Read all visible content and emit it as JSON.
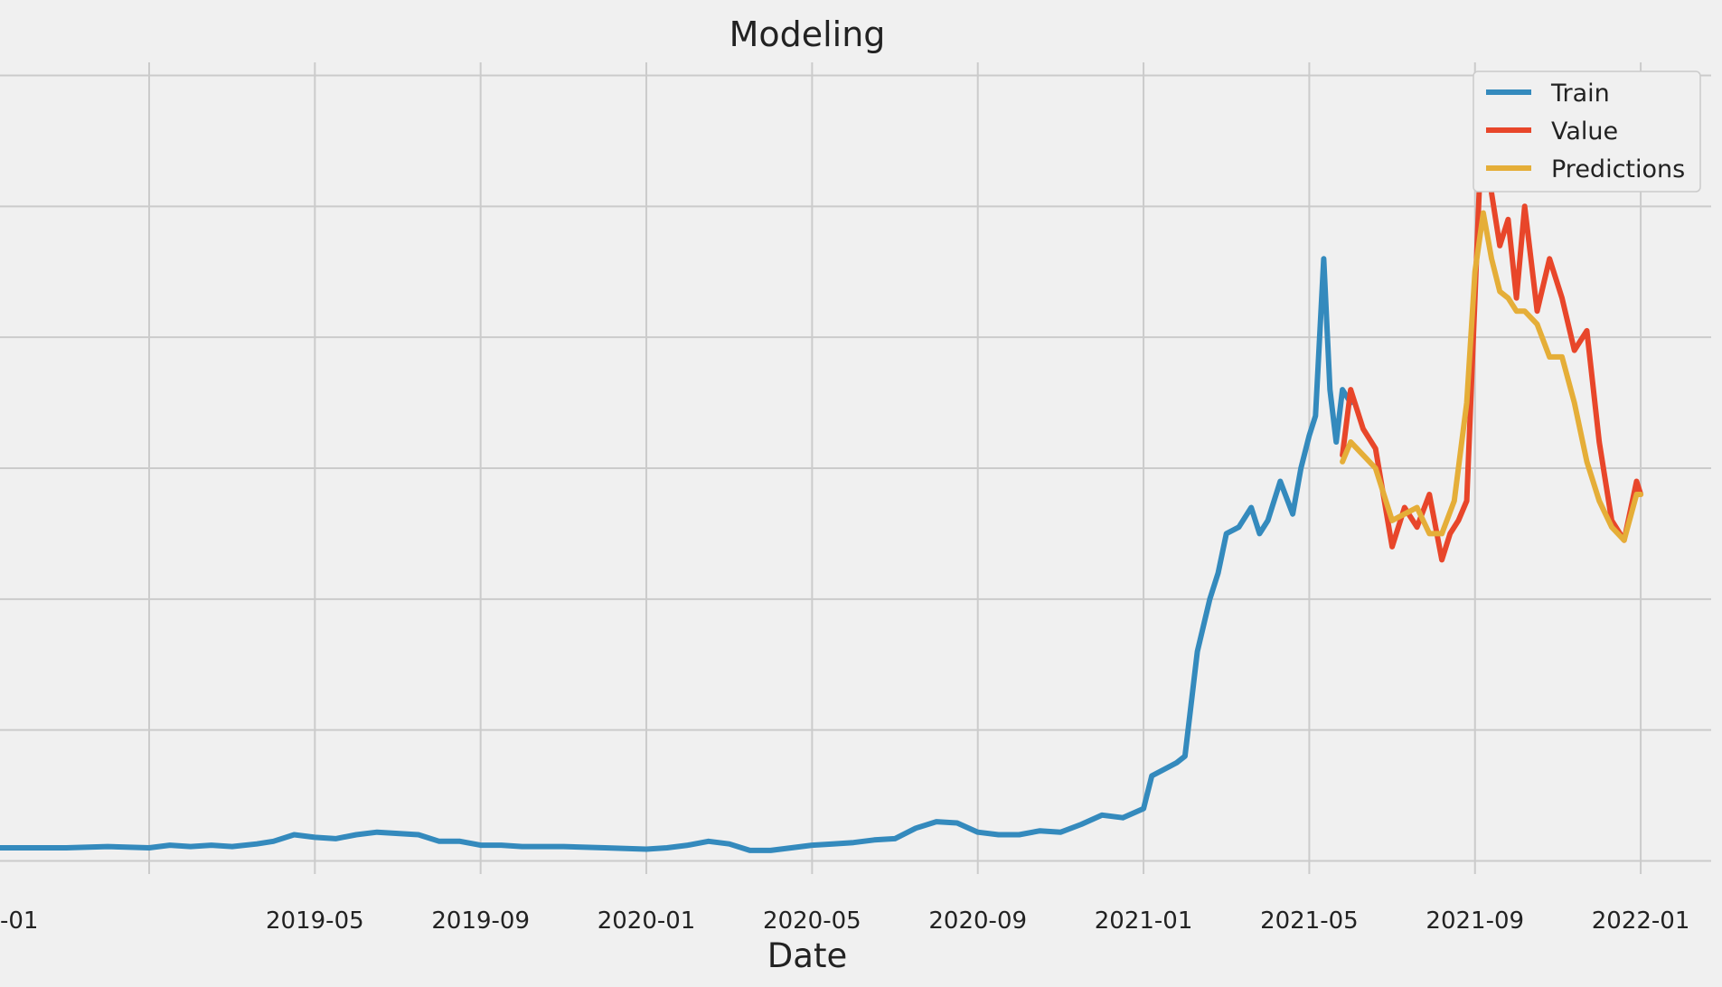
{
  "chart_data": {
    "type": "line",
    "title": "Modeling",
    "xlabel": "Date",
    "ylabel": "",
    "x_tick_labels": [
      "-01",
      "2019-05",
      "2019-09",
      "2020-01",
      "2020-05",
      "2020-09",
      "2021-01",
      "2021-05",
      "2021-09",
      "2022-01"
    ],
    "x_tick_values": [
      0,
      4,
      8,
      12,
      16,
      20,
      24,
      28,
      32,
      36
    ],
    "xlim": [
      -3.6,
      37.7
    ],
    "ylim": [
      -0.1,
      6.1
    ],
    "y_gridlines": [
      0,
      1,
      2,
      3,
      4,
      5,
      6
    ],
    "grid": true,
    "legend_position": "top-right",
    "colors": {
      "background": "#f0f0f0",
      "grid": "#cbcbcb",
      "train": "#348ABD",
      "value": "#E8462A",
      "predictions": "#E5AE38"
    },
    "series": [
      {
        "name": "Train",
        "color": "#348ABD",
        "x": [
          -3.6,
          -3.0,
          -2.0,
          -1.0,
          0.0,
          0.5,
          1.0,
          1.5,
          2.0,
          2.6,
          3.0,
          3.5,
          4.0,
          4.5,
          5.0,
          5.5,
          6.0,
          6.5,
          7.0,
          7.5,
          8.0,
          8.5,
          9.0,
          10.0,
          11.0,
          12.0,
          12.5,
          13.0,
          13.5,
          14.0,
          14.5,
          15.0,
          15.5,
          16.0,
          16.5,
          17.0,
          17.5,
          18.0,
          18.5,
          19.0,
          19.5,
          20.0,
          20.5,
          21.0,
          21.5,
          22.0,
          22.5,
          23.0,
          23.5,
          24.0,
          24.2,
          24.5,
          24.8,
          25.0,
          25.3,
          25.6,
          25.8,
          26.0,
          26.3,
          26.6,
          26.8,
          27.0,
          27.3,
          27.6,
          27.8,
          28.0,
          28.15,
          28.35,
          28.5,
          28.65,
          28.8,
          29.0
        ],
        "y": [
          0.1,
          0.1,
          0.1,
          0.11,
          0.1,
          0.12,
          0.11,
          0.12,
          0.11,
          0.13,
          0.15,
          0.2,
          0.18,
          0.17,
          0.2,
          0.22,
          0.21,
          0.2,
          0.15,
          0.15,
          0.12,
          0.12,
          0.11,
          0.11,
          0.1,
          0.09,
          0.1,
          0.12,
          0.15,
          0.13,
          0.08,
          0.08,
          0.1,
          0.12,
          0.13,
          0.14,
          0.16,
          0.17,
          0.25,
          0.3,
          0.29,
          0.22,
          0.2,
          0.2,
          0.23,
          0.22,
          0.28,
          0.35,
          0.33,
          0.4,
          0.65,
          0.7,
          0.75,
          0.8,
          1.6,
          2.0,
          2.2,
          2.5,
          2.55,
          2.7,
          2.5,
          2.6,
          2.9,
          2.65,
          3.0,
          3.25,
          3.4,
          4.6,
          3.6,
          3.2,
          3.6,
          3.5
        ]
      },
      {
        "name": "Value",
        "color": "#E8462A",
        "x": [
          28.8,
          29.0,
          29.3,
          29.6,
          30.0,
          30.3,
          30.6,
          30.9,
          31.2,
          31.4,
          31.6,
          31.8,
          32.0,
          32.2,
          32.4,
          32.6,
          32.8,
          33.0,
          33.2,
          33.5,
          33.8,
          34.1,
          34.4,
          34.7,
          35.0,
          35.3,
          35.6,
          35.9,
          36.0
        ],
        "y": [
          3.1,
          3.6,
          3.3,
          3.15,
          2.4,
          2.7,
          2.55,
          2.8,
          2.3,
          2.5,
          2.6,
          2.75,
          4.3,
          5.9,
          5.1,
          4.7,
          4.9,
          4.3,
          5.0,
          4.2,
          4.6,
          4.3,
          3.9,
          4.05,
          3.2,
          2.6,
          2.45,
          2.9,
          2.8
        ]
      },
      {
        "name": "Predictions",
        "color": "#E5AE38",
        "x": [
          28.8,
          29.0,
          29.3,
          29.6,
          30.0,
          30.3,
          30.6,
          30.9,
          31.2,
          31.5,
          31.8,
          32.0,
          32.2,
          32.4,
          32.6,
          32.8,
          33.0,
          33.2,
          33.5,
          33.8,
          34.1,
          34.4,
          34.7,
          35.0,
          35.3,
          35.6,
          35.9,
          36.0
        ],
        "y": [
          3.05,
          3.2,
          3.1,
          3.0,
          2.6,
          2.65,
          2.7,
          2.5,
          2.5,
          2.75,
          3.5,
          4.5,
          4.95,
          4.6,
          4.35,
          4.3,
          4.2,
          4.2,
          4.1,
          3.85,
          3.85,
          3.5,
          3.05,
          2.75,
          2.55,
          2.45,
          2.8,
          2.8
        ]
      }
    ]
  }
}
